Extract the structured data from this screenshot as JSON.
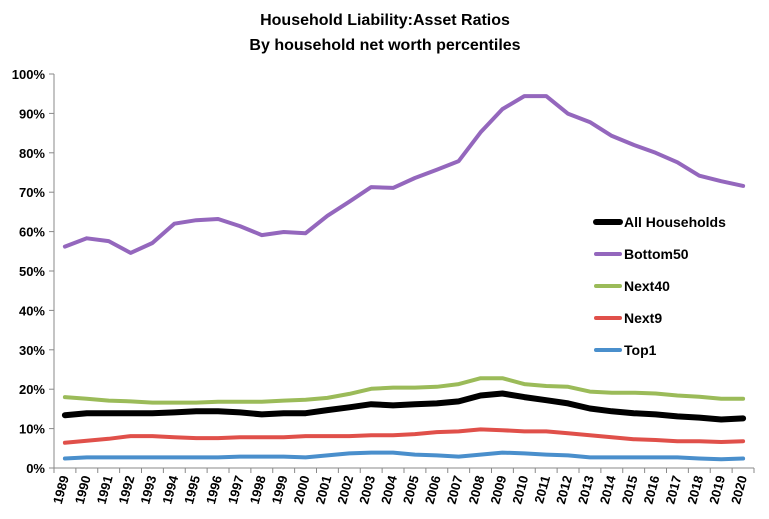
{
  "chart_data": {
    "type": "line",
    "title": "Household Liability:Asset Ratios",
    "subtitle": "By household net worth percentiles",
    "xlabel": "",
    "ylabel": "",
    "ylim": [
      0,
      100
    ],
    "y_tick_values": [
      0,
      10,
      20,
      30,
      40,
      50,
      60,
      70,
      80,
      90,
      100
    ],
    "y_tick_labels": [
      "0%",
      "10%",
      "20%",
      "30%",
      "40%",
      "50%",
      "60%",
      "70%",
      "80%",
      "90%",
      "100%"
    ],
    "grid": false,
    "legend_position": "right",
    "categories": [
      "1989",
      "1990",
      "1991",
      "1992",
      "1993",
      "1994",
      "1995",
      "1996",
      "1997",
      "1998",
      "1999",
      "2000",
      "2001",
      "2002",
      "2003",
      "2004",
      "2005",
      "2006",
      "2007",
      "2008",
      "2009",
      "2010",
      "2011",
      "2012",
      "2013",
      "2014",
      "2015",
      "2016",
      "2017",
      "2018",
      "2019",
      "2020"
    ],
    "series": [
      {
        "name": "All Households",
        "color": "#000000",
        "values": [
          13.4,
          13.9,
          13.9,
          13.9,
          13.9,
          14.1,
          14.4,
          14.4,
          14.1,
          13.6,
          13.9,
          13.9,
          14.7,
          15.4,
          16.2,
          15.9,
          16.2,
          16.4,
          16.9,
          18.4,
          18.9,
          18.0,
          17.2,
          16.4,
          15.1,
          14.4,
          13.9,
          13.6,
          13.1,
          12.8,
          12.3,
          12.6
        ]
      },
      {
        "name": "Bottom50",
        "color": "#9467BD",
        "values": [
          56.2,
          58.3,
          57.6,
          54.6,
          57.1,
          62.0,
          62.9,
          63.2,
          61.4,
          59.1,
          59.9,
          59.6,
          64.0,
          67.6,
          71.3,
          71.1,
          73.6,
          75.7,
          77.9,
          85.2,
          91.1,
          94.4,
          94.4,
          89.9,
          87.8,
          84.3,
          82.0,
          80.0,
          77.6,
          74.2,
          72.8,
          71.6
        ]
      },
      {
        "name": "Next40",
        "color": "#9BBB59",
        "values": [
          18.0,
          17.6,
          17.1,
          16.9,
          16.6,
          16.6,
          16.6,
          16.8,
          16.8,
          16.8,
          17.1,
          17.3,
          17.8,
          18.8,
          20.1,
          20.4,
          20.4,
          20.6,
          21.3,
          22.8,
          22.8,
          21.3,
          20.8,
          20.6,
          19.4,
          19.1,
          19.1,
          18.9,
          18.4,
          18.1,
          17.6,
          17.6
        ]
      },
      {
        "name": "Next9",
        "color": "#E0504A",
        "values": [
          6.4,
          6.9,
          7.4,
          8.1,
          8.1,
          7.8,
          7.6,
          7.6,
          7.8,
          7.8,
          7.8,
          8.1,
          8.1,
          8.1,
          8.3,
          8.3,
          8.6,
          9.1,
          9.3,
          9.8,
          9.6,
          9.3,
          9.3,
          8.8,
          8.3,
          7.8,
          7.3,
          7.1,
          6.8,
          6.8,
          6.6,
          6.8
        ]
      },
      {
        "name": "Top1",
        "color": "#4A8FCC",
        "values": [
          2.4,
          2.7,
          2.7,
          2.7,
          2.7,
          2.7,
          2.7,
          2.7,
          2.9,
          2.9,
          2.9,
          2.7,
          3.2,
          3.7,
          3.9,
          3.9,
          3.4,
          3.2,
          2.9,
          3.4,
          3.9,
          3.7,
          3.4,
          3.2,
          2.7,
          2.7,
          2.7,
          2.7,
          2.7,
          2.4,
          2.2,
          2.4
        ]
      }
    ]
  }
}
